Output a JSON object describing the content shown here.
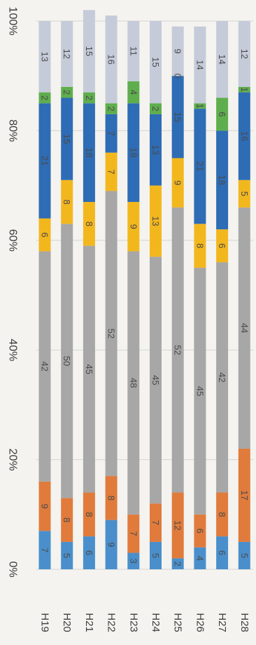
{
  "chart_data": {
    "type": "bar",
    "stacked": true,
    "percent": true,
    "orientation": "horizontal",
    "rotated_90_clockwise": true,
    "categories": [
      "H19",
      "H20",
      "H21",
      "H22",
      "H23",
      "H24",
      "H25",
      "H26",
      "H27",
      "H28"
    ],
    "series": [
      {
        "color": "#4a8fcc",
        "values": [
          7,
          5,
          6,
          9,
          3,
          5,
          2,
          4,
          6,
          5
        ]
      },
      {
        "color": "#e07b3c",
        "values": [
          9,
          8,
          8,
          8,
          7,
          7,
          12,
          6,
          8,
          17
        ]
      },
      {
        "color": "#a7a7a7",
        "values": [
          42,
          50,
          45,
          52,
          48,
          45,
          52,
          45,
          42,
          44
        ]
      },
      {
        "color": "#f3b71e",
        "values": [
          6,
          8,
          8,
          7,
          9,
          13,
          9,
          8,
          6,
          5
        ]
      },
      {
        "color": "#2e6cb5",
        "values": [
          21,
          15,
          18,
          7,
          18,
          13,
          15,
          21,
          18,
          16
        ]
      },
      {
        "color": "#5fae4e",
        "values": [
          2,
          2,
          2,
          2,
          4,
          2,
          0,
          1,
          6,
          1
        ]
      },
      {
        "color": "#c5cbd9",
        "values": [
          13,
          12,
          15,
          16,
          11,
          15,
          9,
          14,
          14,
          12
        ]
      }
    ],
    "value_ticks": [
      "0%",
      "20%",
      "40%",
      "60%",
      "80%",
      "100%"
    ],
    "xlim": [
      0,
      100
    ],
    "grid": true,
    "legend": "none"
  }
}
